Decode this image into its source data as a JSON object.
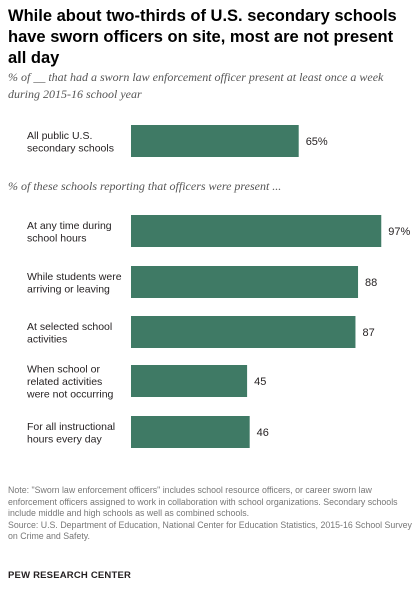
{
  "title": "While about two-thirds of U.S. secondary schools have sworn officers on site, most are not present all day",
  "subtitle": "% of __ that had a sworn law enforcement officer present at least once a week during 2015-16 school year",
  "section_label": "% of these schools reporting that officers were present ...",
  "colors": {
    "bar": "#3f7a65",
    "label_text": "#231f20"
  },
  "chart_data": [
    {
      "type": "bar",
      "orientation": "horizontal",
      "categories": [
        "All public U.S. secondary schools"
      ],
      "category_lines": [
        [
          "All public U.S.",
          "secondary schools"
        ]
      ],
      "values": [
        65
      ],
      "value_labels": [
        "65%"
      ],
      "xlim": [
        0,
        100
      ]
    },
    {
      "type": "bar",
      "orientation": "horizontal",
      "categories": [
        "At any time during school hours",
        "While students were arriving or leaving",
        "At selected school activities",
        "When school or related activities were not occurring",
        "For all instructional hours every day"
      ],
      "category_lines": [
        [
          "At any time during",
          "school hours"
        ],
        [
          "While students were",
          "arriving or leaving"
        ],
        [
          "At selected school",
          "activities"
        ],
        [
          "When school or",
          "related activities",
          "were not occurring"
        ],
        [
          "For all instructional",
          "hours every day"
        ]
      ],
      "values": [
        97,
        88,
        87,
        45,
        46
      ],
      "value_labels": [
        "97%",
        "88",
        "87",
        "45",
        "46"
      ],
      "xlim": [
        0,
        100
      ]
    }
  ],
  "footnote": {
    "note": "Note: \"Sworn law enforcement officers\" includes school resource officers, or career sworn law enforcement officers assigned to work in collaboration with school organizations. Secondary schools include middle and high schools as well as combined schools.",
    "source": "Source: U.S. Department of Education, National Center for Education Statistics, 2015-16 School Survey on Crime and Safety."
  },
  "org_name": "PEW RESEARCH CENTER"
}
